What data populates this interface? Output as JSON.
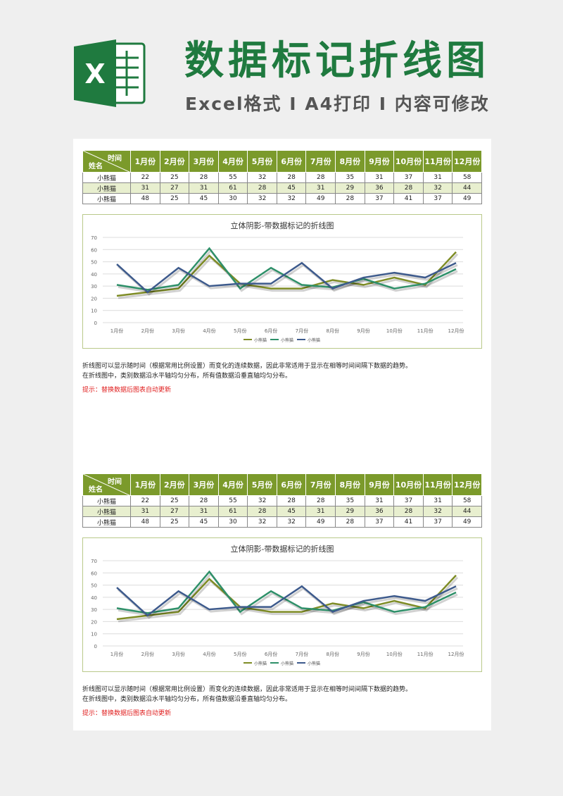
{
  "header": {
    "title": "数据标记折线图",
    "subtitle": "Excel格式 I A4打印 I 内容可修改",
    "logo_letter": "X"
  },
  "colors": {
    "header_green": "#7b9a2b",
    "series": [
      "#7e8c25",
      "#2e9069",
      "#3d5a8c"
    ]
  },
  "table": {
    "corner_top": "时间",
    "corner_bottom": "姓名",
    "months": [
      "1月份",
      "2月份",
      "3月份",
      "4月份",
      "5月份",
      "6月份",
      "7月份",
      "8月份",
      "9月份",
      "10月份",
      "11月份",
      "12月份"
    ],
    "rows": [
      {
        "name": "小熊猫",
        "values": [
          22,
          25,
          28,
          55,
          32,
          28,
          28,
          35,
          31,
          37,
          31,
          58
        ]
      },
      {
        "name": "小熊猫",
        "values": [
          31,
          27,
          31,
          61,
          28,
          45,
          31,
          29,
          36,
          28,
          32,
          44
        ]
      },
      {
        "name": "小熊猫",
        "values": [
          48,
          25,
          45,
          30,
          32,
          32,
          49,
          28,
          37,
          41,
          37,
          49
        ]
      }
    ]
  },
  "chart_data": {
    "type": "line",
    "title": "立体阴影-带数据标记的折线图",
    "categories": [
      "1月份",
      "2月份",
      "3月份",
      "4月份",
      "5月份",
      "6月份",
      "7月份",
      "8月份",
      "9月份",
      "10月份",
      "11月份",
      "12月份"
    ],
    "ylim": [
      0,
      70
    ],
    "yticks": [
      0,
      10,
      20,
      30,
      40,
      50,
      60,
      70
    ],
    "grid": true,
    "legend": "bottom",
    "series": [
      {
        "name": "小熊猫",
        "color": "#7e8c25",
        "values": [
          22,
          25,
          28,
          55,
          32,
          28,
          28,
          35,
          31,
          37,
          31,
          58
        ]
      },
      {
        "name": "小熊猫",
        "color": "#2e9069",
        "values": [
          31,
          27,
          31,
          61,
          28,
          45,
          31,
          29,
          36,
          28,
          32,
          44
        ]
      },
      {
        "name": "小熊猫",
        "color": "#3d5a8c",
        "values": [
          48,
          25,
          45,
          30,
          32,
          32,
          49,
          28,
          37,
          41,
          37,
          49
        ]
      }
    ]
  },
  "notes": {
    "line1": "折线图可以显示随时间（根据常用比例设置）而变化的连续数据，因此非常适用于显示在相等时间间隔下数据的趋势。",
    "line2": "在折线图中，类别数据沿水平轴均匀分布，所有值数据沿垂直轴均匀分布。",
    "tip": "提示：替换数据后图表自动更新"
  }
}
